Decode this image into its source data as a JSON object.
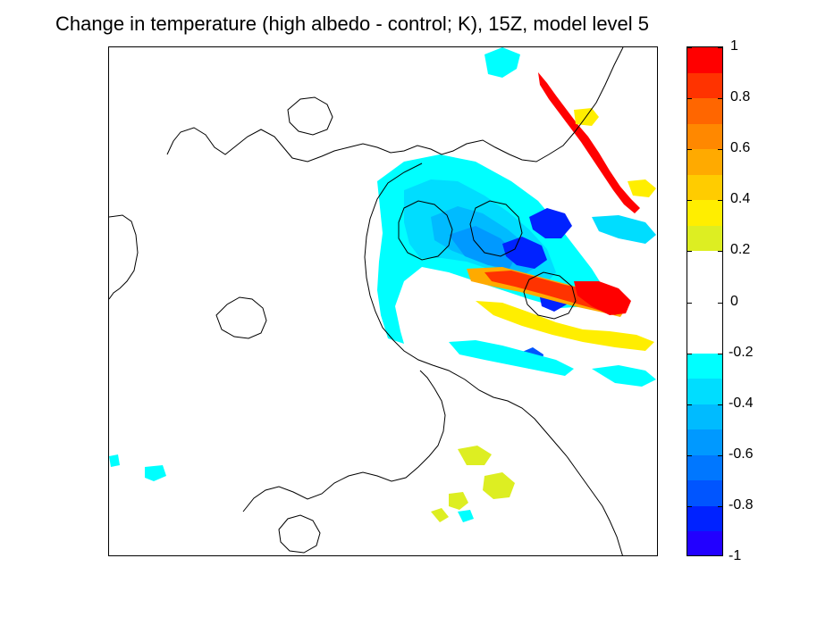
{
  "title": "Change in temperature (high albedo - control; K), 15Z, model level 5",
  "chart_data": {
    "type": "heatmap",
    "title": "Change in temperature (high albedo - control; K), 15Z, model level 5",
    "colorbar": {
      "range": [
        -1,
        1
      ],
      "tick_labels": [
        "1",
        "0.8",
        "0.6",
        "0.4",
        "0.2",
        "0",
        "-0.2",
        "-0.4",
        "-0.6",
        "-0.8",
        "-1"
      ],
      "tick_values": [
        1,
        0.8,
        0.6,
        0.4,
        0.2,
        0,
        -0.2,
        -0.4,
        -0.6,
        -0.8,
        -1
      ],
      "levels": [
        {
          "min": 0.9,
          "max": 1.0,
          "color": "#ff0000"
        },
        {
          "min": 0.8,
          "max": 0.9,
          "color": "#ff3300"
        },
        {
          "min": 0.7,
          "max": 0.8,
          "color": "#ff6600"
        },
        {
          "min": 0.6,
          "max": 0.7,
          "color": "#ff8800"
        },
        {
          "min": 0.5,
          "max": 0.6,
          "color": "#ffaa00"
        },
        {
          "min": 0.4,
          "max": 0.5,
          "color": "#ffcc00"
        },
        {
          "min": 0.3,
          "max": 0.4,
          "color": "#ffee00"
        },
        {
          "min": 0.2,
          "max": 0.3,
          "color": "#ddee22"
        },
        {
          "min": -0.2,
          "max": 0.2,
          "color": "#ffffff"
        },
        {
          "min": -0.3,
          "max": -0.2,
          "color": "#00ffff"
        },
        {
          "min": -0.4,
          "max": -0.3,
          "color": "#00ddff"
        },
        {
          "min": -0.5,
          "max": -0.4,
          "color": "#00bbff"
        },
        {
          "min": -0.6,
          "max": -0.5,
          "color": "#0099ff"
        },
        {
          "min": -0.7,
          "max": -0.6,
          "color": "#0077ff"
        },
        {
          "min": -0.8,
          "max": -0.7,
          "color": "#0055ff"
        },
        {
          "min": -0.9,
          "max": -0.8,
          "color": "#0022ff"
        },
        {
          "min": -1.0,
          "max": -0.9,
          "color": "#2200ff"
        }
      ]
    },
    "grid": false,
    "contours": "black coastline/orography contours",
    "anomaly_regions": [
      {
        "location": "central-north (broad cooling band)",
        "value": -0.4
      },
      {
        "location": "central core",
        "value": -0.6
      },
      {
        "location": "east-central cold spots",
        "value": -0.85
      },
      {
        "location": "east-central warm streak",
        "value": 0.85
      },
      {
        "location": "north-east coastal line",
        "value": 0.9
      },
      {
        "location": "scattered warm patches south-east",
        "value": 0.25
      },
      {
        "location": "south-central cold spot",
        "value": -0.75
      }
    ]
  }
}
